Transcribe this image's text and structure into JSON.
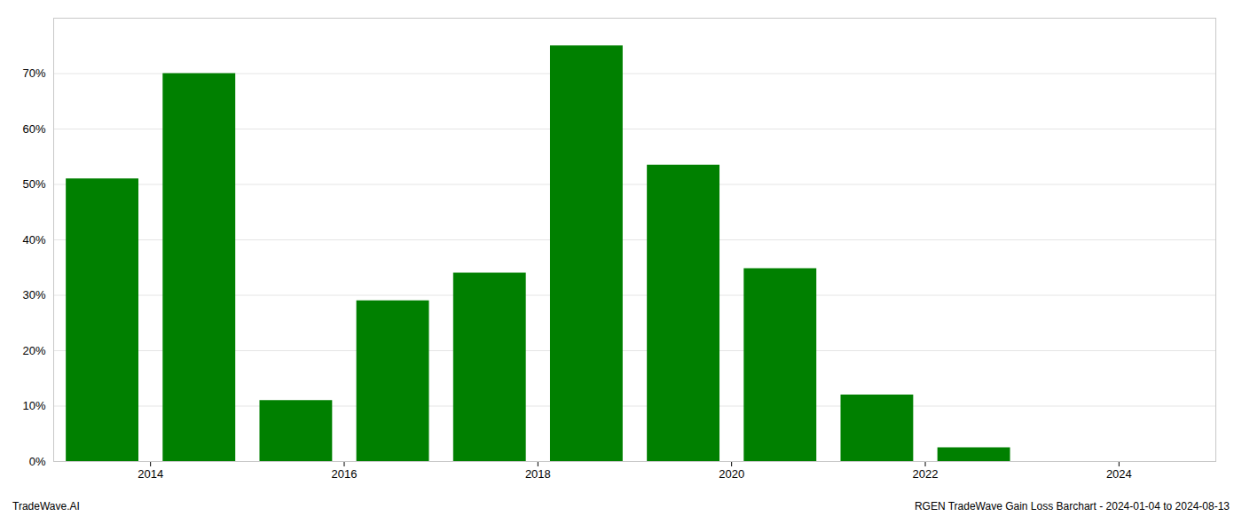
{
  "chart_data": {
    "type": "bar",
    "x": [
      2013.5,
      2014.5,
      2015.5,
      2016.5,
      2017.5,
      2018.5,
      2019.5,
      2020.5,
      2021.5,
      2022.5
    ],
    "values": [
      0.51,
      0.7,
      0.11,
      0.29,
      0.34,
      0.75,
      0.535,
      0.348,
      0.12,
      0.025
    ],
    "color": "#008000",
    "xlim": [
      2013,
      2025
    ],
    "xticks": [
      2014,
      2016,
      2018,
      2020,
      2022,
      2024
    ],
    "ylim": [
      0,
      0.8
    ],
    "yticks": [
      {
        "value": 0,
        "label": "0%"
      },
      {
        "value": 0.1,
        "label": "10%"
      },
      {
        "value": 0.2,
        "label": "20%"
      },
      {
        "value": 0.3,
        "label": "30%"
      },
      {
        "value": 0.4,
        "label": "40%"
      },
      {
        "value": 0.5,
        "label": "50%"
      },
      {
        "value": 0.6,
        "label": "60%"
      },
      {
        "value": 0.7,
        "label": "70%"
      }
    ],
    "grid": "y",
    "annotations": [
      "TradeWave.AI",
      "RGEN TradeWave Gain Loss Barchart - 2024-01-04 to 2024-08-13"
    ]
  }
}
